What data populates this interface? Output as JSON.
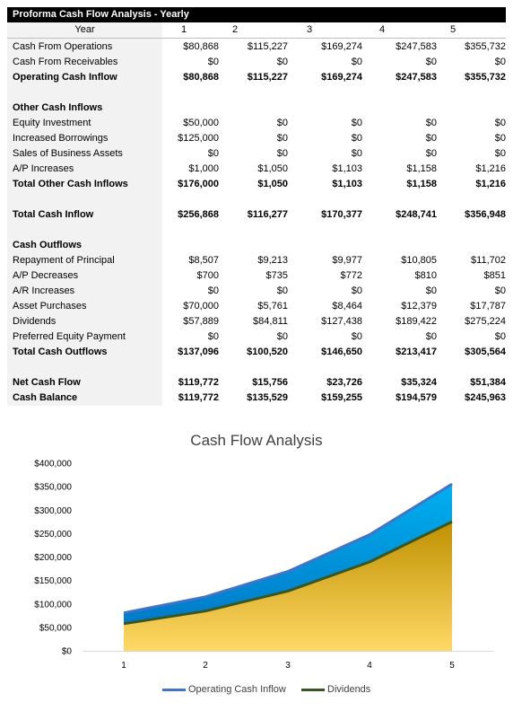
{
  "table": {
    "title": "Proforma Cash Flow Analysis - Yearly",
    "year_label": "Year",
    "years": [
      "1",
      "2",
      "3",
      "4",
      "5"
    ],
    "rows": [
      {
        "label": "Cash From Operations",
        "values": [
          "$80,868",
          "$115,227",
          "$169,274",
          "$247,583",
          "$355,732"
        ],
        "bold": false
      },
      {
        "label": "Cash From Receivables",
        "values": [
          "$0",
          "$0",
          "$0",
          "$0",
          "$0"
        ],
        "bold": false
      },
      {
        "label": "Operating Cash Inflow",
        "values": [
          "$80,868",
          "$115,227",
          "$169,274",
          "$247,583",
          "$355,732"
        ],
        "bold": true
      },
      {
        "label": "",
        "values": [],
        "bold": false
      },
      {
        "label": "Other Cash Inflows",
        "values": [],
        "bold": true
      },
      {
        "label": "Equity Investment",
        "values": [
          "$50,000",
          "$0",
          "$0",
          "$0",
          "$0"
        ],
        "bold": false
      },
      {
        "label": "Increased Borrowings",
        "values": [
          "$125,000",
          "$0",
          "$0",
          "$0",
          "$0"
        ],
        "bold": false
      },
      {
        "label": "Sales of Business Assets",
        "values": [
          "$0",
          "$0",
          "$0",
          "$0",
          "$0"
        ],
        "bold": false
      },
      {
        "label": "A/P Increases",
        "values": [
          "$1,000",
          "$1,050",
          "$1,103",
          "$1,158",
          "$1,216"
        ],
        "bold": false
      },
      {
        "label": "Total Other Cash Inflows",
        "values": [
          "$176,000",
          "$1,050",
          "$1,103",
          "$1,158",
          "$1,216"
        ],
        "bold": true
      },
      {
        "label": "",
        "values": [],
        "bold": false
      },
      {
        "label": "Total Cash Inflow",
        "values": [
          "$256,868",
          "$116,277",
          "$170,377",
          "$248,741",
          "$356,948"
        ],
        "bold": true
      },
      {
        "label": "",
        "values": [],
        "bold": false
      },
      {
        "label": "Cash Outflows",
        "values": [],
        "bold": true
      },
      {
        "label": "Repayment of Principal",
        "values": [
          "$8,507",
          "$9,213",
          "$9,977",
          "$10,805",
          "$11,702"
        ],
        "bold": false
      },
      {
        "label": "A/P Decreases",
        "values": [
          "$700",
          "$735",
          "$772",
          "$810",
          "$851"
        ],
        "bold": false
      },
      {
        "label": "A/R Increases",
        "values": [
          "$0",
          "$0",
          "$0",
          "$0",
          "$0"
        ],
        "bold": false
      },
      {
        "label": "Asset Purchases",
        "values": [
          "$70,000",
          "$5,761",
          "$8,464",
          "$12,379",
          "$17,787"
        ],
        "bold": false
      },
      {
        "label": "Dividends",
        "values": [
          "$57,889",
          "$84,811",
          "$127,438",
          "$189,422",
          "$275,224"
        ],
        "bold": false
      },
      {
        "label": "Preferred Equity Payment",
        "values": [
          "$0",
          "$0",
          "$0",
          "$0",
          "$0"
        ],
        "bold": false
      },
      {
        "label": "Total Cash Outflows",
        "values": [
          "$137,096",
          "$100,520",
          "$146,650",
          "$213,417",
          "$305,564"
        ],
        "bold": true
      },
      {
        "label": "",
        "values": [],
        "bold": false
      },
      {
        "label": "Net Cash Flow",
        "values": [
          "$119,772",
          "$15,756",
          "$23,726",
          "$35,324",
          "$51,384"
        ],
        "bold": true
      },
      {
        "label": "Cash Balance",
        "values": [
          "$119,772",
          "$135,529",
          "$159,255",
          "$194,579",
          "$245,963"
        ],
        "bold": true
      }
    ]
  },
  "chart_data": {
    "type": "area",
    "title": "Cash Flow Analysis",
    "categories": [
      "1",
      "2",
      "3",
      "4",
      "5"
    ],
    "ylim": [
      0,
      400000
    ],
    "ytick_values": [
      0,
      50000,
      100000,
      150000,
      200000,
      250000,
      300000,
      350000,
      400000
    ],
    "yticks": [
      "$0",
      "$50,000",
      "$100,000",
      "$150,000",
      "$200,000",
      "$250,000",
      "$300,000",
      "$350,000",
      "$400,000"
    ],
    "legend_position": "bottom",
    "grid": false,
    "series": [
      {
        "name": "Operating Cash Inflow",
        "values": [
          80868,
          115227,
          169274,
          247583,
          355732
        ],
        "line_color": "#4472c4",
        "fill_top": "#00b0f0",
        "fill_bottom": "#0070c0"
      },
      {
        "name": "Dividends",
        "values": [
          57889,
          84811,
          127438,
          189422,
          275224
        ],
        "line_color": "#375623",
        "fill_top": "#bf9000",
        "fill_bottom": "#ffd966"
      }
    ]
  }
}
